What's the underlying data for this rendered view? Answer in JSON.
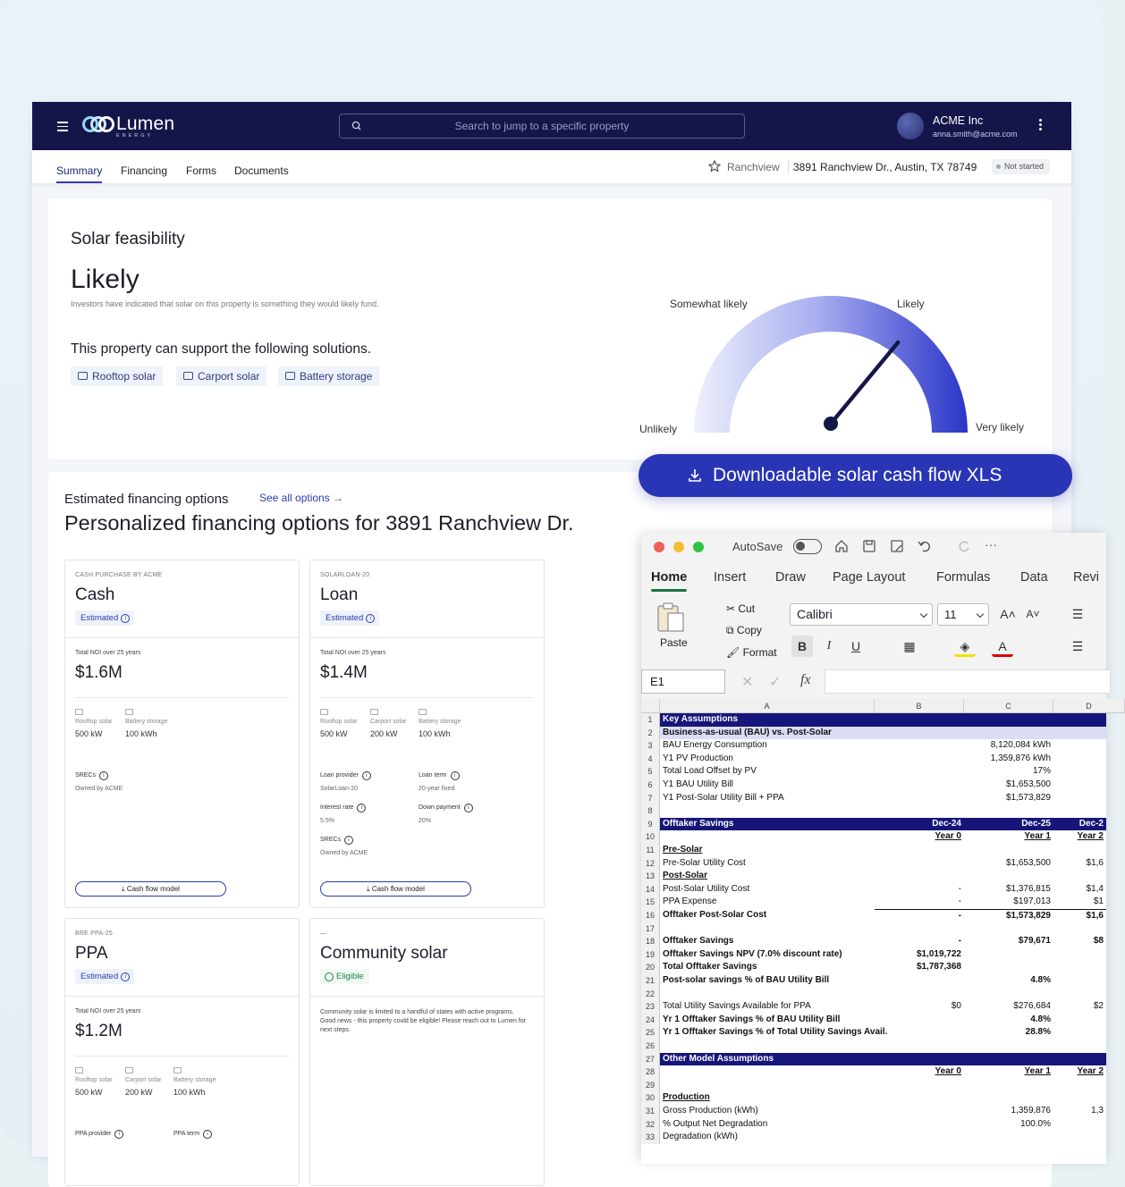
{
  "app": {
    "logo_text": "Lumen",
    "logo_sub": "ENERGY",
    "search_placeholder": "Search to jump to a specific property",
    "org": "ACME Inc",
    "email": "anna.smith@acme.com"
  },
  "tabs": [
    "Summary",
    "Financing",
    "Forms",
    "Documents"
  ],
  "property": {
    "name": "Ranchview",
    "address": "3891 Ranchview Dr., Austin, TX 78749",
    "status": "Not started"
  },
  "feasibility": {
    "title": "Solar feasibility",
    "result": "Likely",
    "description": "Investors have indicated that solar on this property is something they would likely fund.",
    "support_text": "This property can support the following solutions.",
    "solutions": [
      "Rooftop solar",
      "Carport solar",
      "Battery storage"
    ],
    "gauge_labels": {
      "unlikely": "Unlikely",
      "somewhat": "Somewhat likely",
      "likely": "Likely",
      "very": "Very likely"
    },
    "gauge_level": 0.72
  },
  "financing": {
    "section_title": "Estimated financing options",
    "see_all": "See all options",
    "headline": "Personalized financing options for 3891 Ranchview Dr.",
    "cash": {
      "kicker": "CASH PURCHASE BY ACME",
      "name": "Cash",
      "badge": "Estimated",
      "noi_label": "Total NOI over 25 years",
      "noi": "$1.6M",
      "specs": [
        {
          "label": "Rooftop solar",
          "value": "500 kW"
        },
        {
          "label": "Battery storage",
          "value": "100 kWh"
        }
      ],
      "srecs_label": "SRECs",
      "srecs_value": "Owned by ACME",
      "button": "Cash flow model"
    },
    "loan": {
      "kicker": "SOLARLOAN-20",
      "name": "Loan",
      "badge": "Estimated",
      "noi_label": "Total NOI over 25 years",
      "noi": "$1.4M",
      "specs": [
        {
          "label": "Rooftop solar",
          "value": "500 kW"
        },
        {
          "label": "Carport solar",
          "value": "200 kW"
        },
        {
          "label": "Battery storage",
          "value": "100 kWh"
        }
      ],
      "provider_label": "Loan provider",
      "provider_value": "SolarLoan-20",
      "term_label": "Loan term",
      "term_value": "20-year fixed",
      "rate_label": "Interest rate",
      "rate_value": "5.5%",
      "down_label": "Down payment",
      "down_value": "20%",
      "srecs_label": "SRECs",
      "srecs_value": "Owned by ACME",
      "button": "Cash flow model"
    },
    "ppa": {
      "kicker": "BRE PPA-25",
      "name": "PPA",
      "badge": "Estimated",
      "noi_label": "Total NOI over 25 years",
      "noi": "$1.2M",
      "specs": [
        {
          "label": "Rooftop solar",
          "value": "500 kW"
        },
        {
          "label": "Carport solar",
          "value": "200 kW"
        },
        {
          "label": "Battery storage",
          "value": "100 kWh"
        }
      ],
      "provider_label": "PPA provider",
      "term_label": "PPA term"
    },
    "community": {
      "kicker": "—",
      "name": "Community solar",
      "badge": "Eligible",
      "description": "Community solar is limited to a handful of states with active programs. Good news - this property could be eligible! Please reach out to Lumen for next steps."
    }
  },
  "download_banner": "Downloadable solar cash flow XLS",
  "excel": {
    "autosave": "AutoSave",
    "tabs": [
      "Home",
      "Insert",
      "Draw",
      "Page Layout",
      "Formulas",
      "Data",
      "Revi"
    ],
    "paste": "Paste",
    "cut": "Cut",
    "copy": "Copy",
    "format": "Format",
    "font": "Calibri",
    "size": "11",
    "cell_ref": "E1",
    "fx": "fx",
    "columns": [
      "A",
      "B",
      "C",
      "D"
    ],
    "rows": [
      {
        "n": "1",
        "style": "band",
        "a": "Key Assumptions",
        "b": "",
        "c": "",
        "d": ""
      },
      {
        "n": "2",
        "style": "sub",
        "a": "Business-as-usual (BAU) vs. Post-Solar",
        "b": "",
        "c": "",
        "d": ""
      },
      {
        "n": "3",
        "style": "",
        "a": "BAU Energy Consumption",
        "b": "",
        "c": "8,120,084 kWh",
        "d": ""
      },
      {
        "n": "4",
        "style": "",
        "a": "Y1 PV Production",
        "b": "",
        "c": "1,359,876 kWh",
        "d": ""
      },
      {
        "n": "5",
        "style": "",
        "a": "Total Load Offset by PV",
        "b": "",
        "c": "17%",
        "d": ""
      },
      {
        "n": "6",
        "style": "",
        "a": "Y1 BAU Utility Bill",
        "b": "",
        "c": "$1,653,500",
        "d": ""
      },
      {
        "n": "7",
        "style": "",
        "a": "Y1 Post-Solar Utility Bill + PPA",
        "b": "",
        "c": "$1,573,829",
        "d": ""
      },
      {
        "n": "8",
        "style": "",
        "a": "",
        "b": "",
        "c": "",
        "d": ""
      },
      {
        "n": "9",
        "style": "band",
        "a": "Offtaker Savings",
        "b": "Dec-24",
        "c": "Dec-25",
        "d": "Dec-2"
      },
      {
        "n": "10",
        "style": "ulrow",
        "a": "",
        "b": "Year 0",
        "c": "Year 1",
        "d": "Year 2"
      },
      {
        "n": "11",
        "style": "",
        "a": "Pre-Solar",
        "a_ul": true,
        "b": "",
        "c": "",
        "d": ""
      },
      {
        "n": "12",
        "style": "",
        "a": "Pre-Solar Utility Cost",
        "b": "",
        "c": "$1,653,500",
        "d": "$1,6"
      },
      {
        "n": "13",
        "style": "",
        "a": "Post-Solar",
        "a_ul": true,
        "b": "",
        "c": "",
        "d": ""
      },
      {
        "n": "14",
        "style": "",
        "a": "Post-Solar Utility Cost",
        "b": "-",
        "c": "$1,376,815",
        "d": "$1,4"
      },
      {
        "n": "15",
        "style": "",
        "a": "PPA Expense",
        "b": "-",
        "c": "$197,013",
        "d": "$1"
      },
      {
        "n": "16",
        "style": "boldline",
        "a": "Offtaker Post-Solar Cost",
        "b": "-",
        "c": "$1,573,829",
        "d": "$1,6"
      },
      {
        "n": "17",
        "style": "",
        "a": "",
        "b": "",
        "c": "",
        "d": ""
      },
      {
        "n": "18",
        "style": "bold",
        "a": "Offtaker Savings",
        "b": "-",
        "c": "$79,671",
        "d": "$8"
      },
      {
        "n": "19",
        "style": "bold",
        "a": "Offtaker Savings NPV (7.0% discount rate)",
        "b": "$1,019,722",
        "c": "",
        "d": ""
      },
      {
        "n": "20",
        "style": "bold",
        "a": "Total Offtaker Savings",
        "b": "$1,787,368",
        "c": "",
        "d": ""
      },
      {
        "n": "21",
        "style": "bold",
        "a": "Post-solar savings % of BAU Utility Bill",
        "b": "",
        "c": "4.8%",
        "d": ""
      },
      {
        "n": "22",
        "style": "",
        "a": "",
        "b": "",
        "c": "",
        "d": ""
      },
      {
        "n": "23",
        "style": "",
        "a": "Total Utility Savings Available for PPA",
        "b": "$0",
        "c": "$276,684",
        "d": "$2"
      },
      {
        "n": "24",
        "style": "bold",
        "a": "Yr 1 Offtaker Savings % of BAU Utility Bill",
        "b": "",
        "c": "4.8%",
        "d": ""
      },
      {
        "n": "25",
        "style": "bold",
        "a": "Yr 1 Offtaker Savings % of Total Utility Savings Avail.",
        "b": "",
        "c": "28.8%",
        "d": ""
      },
      {
        "n": "26",
        "style": "",
        "a": "",
        "b": "",
        "c": "",
        "d": ""
      },
      {
        "n": "27",
        "style": "band",
        "a": "Other Model Assumptions",
        "b": "",
        "c": "",
        "d": ""
      },
      {
        "n": "28",
        "style": "ulrow",
        "a": "",
        "b": "Year 0",
        "c": "Year 1",
        "d": "Year 2"
      },
      {
        "n": "29",
        "style": "",
        "a": "",
        "b": "",
        "c": "",
        "d": ""
      },
      {
        "n": "30",
        "style": "",
        "a": "Production",
        "a_ul": true,
        "b": "",
        "c": "",
        "d": ""
      },
      {
        "n": "31",
        "style": "",
        "a": "Gross Production (kWh)",
        "b": "",
        "c": "1,359,876",
        "d": "1,3"
      },
      {
        "n": "32",
        "style": "",
        "a": "% Output Net Degradation",
        "b": "",
        "c": "100.0%",
        "d": ""
      },
      {
        "n": "33",
        "style": "",
        "a": "Degradation (kWh)",
        "b": "",
        "c": "",
        "d": ""
      }
    ]
  },
  "colors": {
    "navy": "#16154a",
    "accent": "#2a35b5",
    "excel_green": "#1e7145"
  }
}
